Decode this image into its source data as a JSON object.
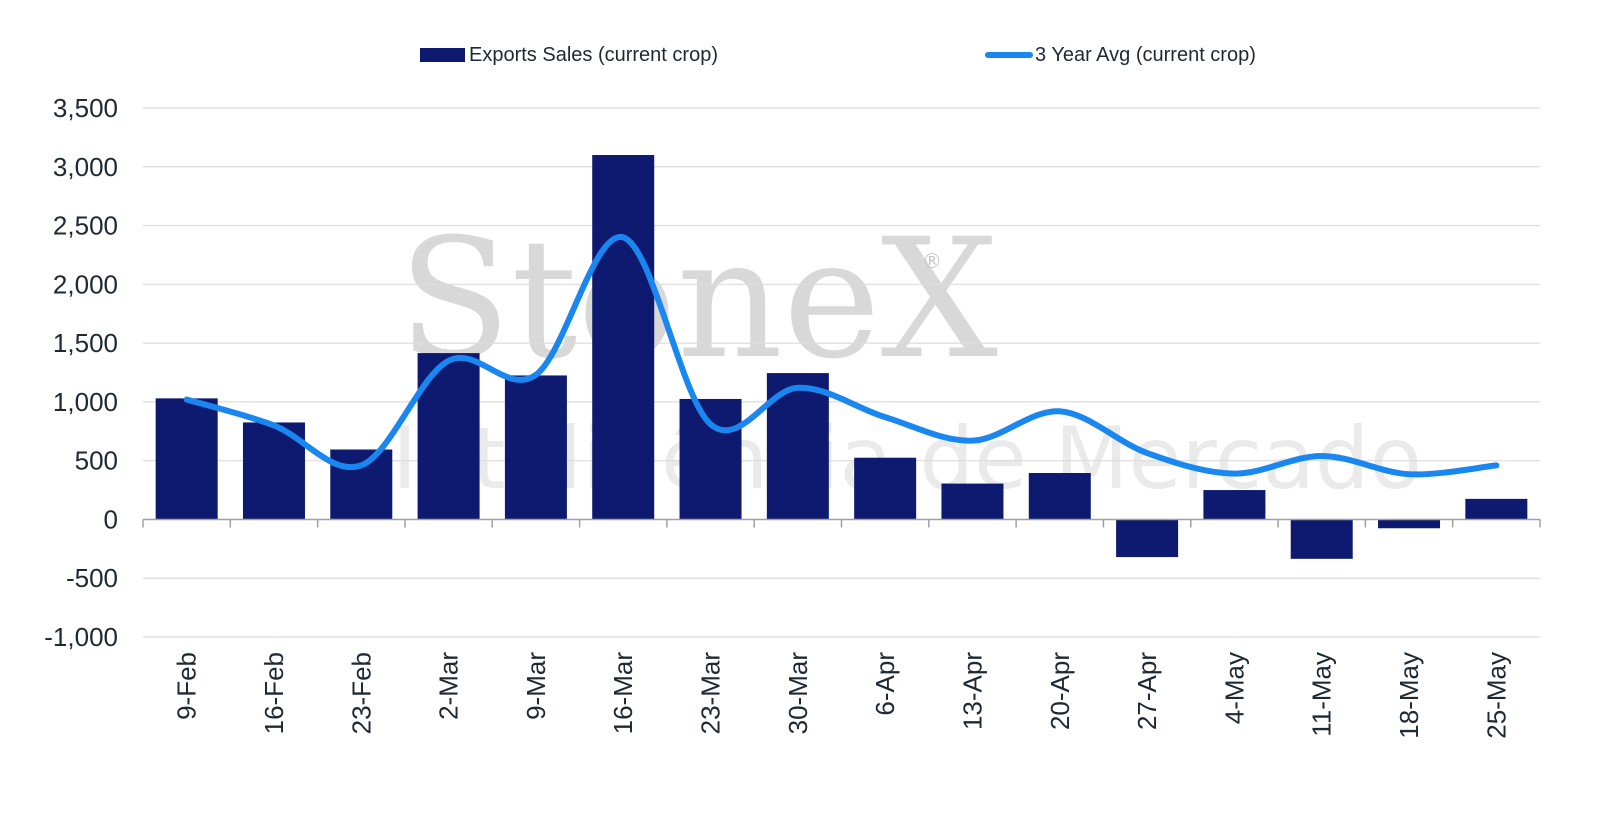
{
  "colors": {
    "bar": "#0e1a70",
    "line": "#1a87f0",
    "grid": "#dcdcdc",
    "axis": "#a0a0a0",
    "text": "#1f2933"
  },
  "watermark": {
    "brand": "StoneX",
    "tagline": "Inteligência de Mercado",
    "mark": "®"
  },
  "chart_data": {
    "type": "bar",
    "title": "",
    "xlabel": "",
    "ylabel": "",
    "ylim": [
      -1000,
      3500
    ],
    "yticks": [
      3500,
      3000,
      2500,
      2000,
      1500,
      1000,
      500,
      0,
      -500,
      -1000
    ],
    "ytick_labels": [
      "3,500",
      "3,000",
      "2,500",
      "2,000",
      "1,500",
      "1,000",
      "500",
      "0",
      "-500",
      "-1,000"
    ],
    "grid": true,
    "legend": "top",
    "categories": [
      "9-Feb",
      "16-Feb",
      "23-Feb",
      "2-Mar",
      "9-Mar",
      "16-Mar",
      "23-Mar",
      "30-Mar",
      "6-Apr",
      "13-Apr",
      "20-Apr",
      "27-Apr",
      "4-May",
      "11-May",
      "18-May",
      "25-May"
    ],
    "series": [
      {
        "name": "Exports Sales (current crop)",
        "type": "bar",
        "values": [
          1030,
          825,
          595,
          1415,
          1225,
          3100,
          1025,
          1245,
          525,
          305,
          395,
          -320,
          250,
          -335,
          -75,
          175
        ]
      },
      {
        "name": "3 Year Avg (current crop)",
        "type": "line",
        "values": [
          1020,
          800,
          460,
          1350,
          1230,
          2400,
          810,
          1120,
          870,
          670,
          920,
          565,
          390,
          540,
          385,
          460
        ]
      }
    ]
  }
}
